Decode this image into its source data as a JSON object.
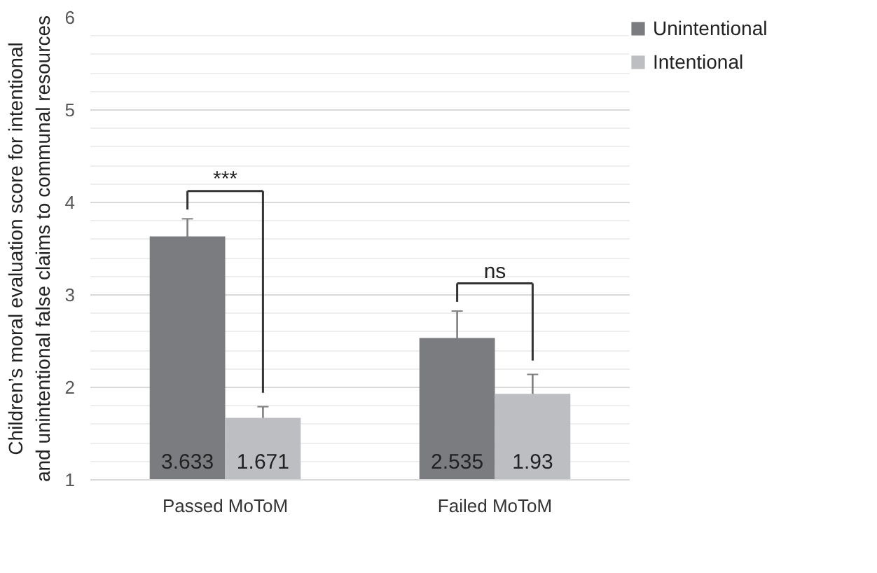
{
  "chart_data": {
    "type": "bar",
    "ylabel": "Children’s moral evaluation score for intentional and unintentional false claims to communal resources",
    "categories": [
      "Passed MoToM",
      "Failed MoToM"
    ],
    "series": [
      {
        "name": "Unintentional",
        "color": "#7b7c80",
        "values": [
          3.633,
          2.535
        ],
        "errors": [
          0.19,
          0.29
        ]
      },
      {
        "name": "Intentional",
        "color": "#bdbec2",
        "values": [
          1.671,
          1.93
        ],
        "errors": [
          0.12,
          0.21
        ]
      }
    ],
    "ylim": [
      1,
      6
    ],
    "yticks": [
      1,
      2,
      3,
      4,
      5,
      6
    ],
    "grid": "y",
    "legend": "right",
    "data_labels": true,
    "annotations": [
      "***",
      "ns"
    ]
  }
}
